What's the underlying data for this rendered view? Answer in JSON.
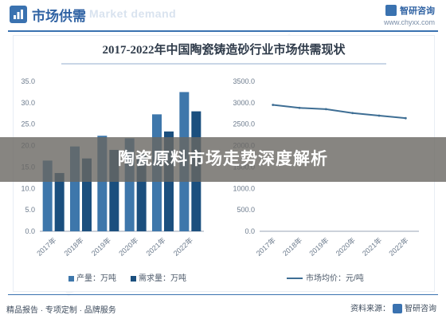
{
  "header": {
    "title": "市场供需",
    "watermark": "Market demand",
    "brand_name": "智研咨询",
    "brand_url": "www.chyxx.com"
  },
  "chart_title": "2017-2022年中国陶瓷铸造砂行业市场供需现状",
  "banner_text": "陶瓷原料市场走势深度解析",
  "footer": {
    "left": "精品报告 · 专项定制 · 品牌服务",
    "right_prefix": "资料来源：",
    "right_brand": "智研咨询"
  },
  "chart_data": [
    {
      "type": "bar",
      "categories": [
        "2017年",
        "2018年",
        "2019年",
        "2020年",
        "2021年",
        "2022年"
      ],
      "series": [
        {
          "name": "产量：万吨",
          "values": [
            16.5,
            19.8,
            22.3,
            21.7,
            27.3,
            32.5
          ],
          "color": "#3e77ab"
        },
        {
          "name": "需求量：万吨",
          "values": [
            13.6,
            17.0,
            19.0,
            18.0,
            23.3,
            28.0
          ],
          "color": "#1b4f7e"
        }
      ],
      "ylim": [
        0,
        35
      ],
      "yticks": [
        "0.0",
        "5.0",
        "10.0",
        "15.0",
        "20.0",
        "25.0",
        "30.0",
        "35.0"
      ],
      "grid": false,
      "legend": "bottom"
    },
    {
      "type": "line",
      "categories": [
        "2017年",
        "2018年",
        "2019年",
        "2020年",
        "2021年",
        "2022年"
      ],
      "series": [
        {
          "name": "市场均价：元/吨",
          "values": [
            2950,
            2880,
            2850,
            2760,
            2700,
            2640
          ],
          "color": "#3e6e94"
        }
      ],
      "ylim": [
        0,
        3500
      ],
      "yticks": [
        "0.0",
        "500.0",
        "1000.0",
        "1500.0",
        "2000.0",
        "2500.0",
        "3000.0",
        "3500.0"
      ],
      "grid": false,
      "legend": "bottom"
    }
  ]
}
